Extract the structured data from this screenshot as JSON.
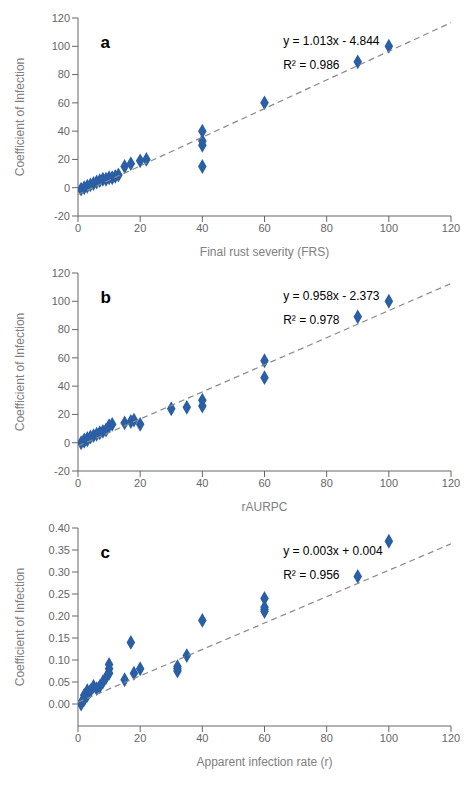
{
  "chart_data": [
    {
      "type": "scatter",
      "xlabel": "Final rust severity (FRS)",
      "ylabel": "Coefficient of Infection",
      "annotations": [
        "a",
        "y = 1.013x - 4.844",
        "R² = 0.986"
      ],
      "xlim": [
        0,
        120
      ],
      "ylim": [
        -20,
        120
      ],
      "xticks": [
        0,
        20,
        40,
        60,
        80,
        100,
        120
      ],
      "yticks": [
        -20,
        0,
        20,
        40,
        60,
        80,
        100,
        120
      ],
      "grid": false,
      "series": [
        {
          "type": "scatter",
          "color": "#2B5FA5",
          "marker": "diamond",
          "x": [
            1,
            2,
            3,
            4,
            5,
            6,
            7,
            8,
            9,
            10,
            11,
            12,
            13,
            15,
            17,
            20,
            22,
            40,
            40,
            40,
            40,
            60,
            90,
            100
          ],
          "values": [
            -1,
            0,
            1,
            2,
            3,
            4,
            5,
            6,
            6,
            7,
            7,
            8,
            9,
            15,
            17,
            19,
            20,
            15,
            30,
            33,
            40,
            60,
            89,
            100
          ]
        },
        {
          "type": "line",
          "color": "#888888",
          "line_style": "dashed",
          "x": [
            0,
            120
          ],
          "values": [
            -4.844,
            116.716
          ]
        }
      ]
    },
    {
      "type": "scatter",
      "xlabel": "rAURPC",
      "ylabel": "Coefficient of Infection",
      "annotations": [
        "b",
        "y = 0.958x - 2.373",
        "R² = 0.978"
      ],
      "xlim": [
        0,
        120
      ],
      "ylim": [
        -20,
        120
      ],
      "xticks": [
        0,
        20,
        40,
        60,
        80,
        100,
        120
      ],
      "yticks": [
        -20,
        0,
        20,
        40,
        60,
        80,
        100,
        120
      ],
      "grid": false,
      "series": [
        {
          "type": "scatter",
          "color": "#2B5FA5",
          "marker": "diamond",
          "x": [
            1,
            2,
            2,
            3,
            3,
            4,
            5,
            6,
            7,
            8,
            9,
            10,
            11,
            15,
            17,
            18,
            20,
            30,
            35,
            40,
            40,
            60,
            60,
            90,
            100
          ],
          "values": [
            0,
            1,
            2,
            2,
            3,
            4,
            5,
            6,
            7,
            8,
            9,
            12,
            13,
            14,
            15,
            16,
            13,
            24,
            25,
            26,
            30,
            46,
            58,
            89,
            100
          ]
        },
        {
          "type": "line",
          "color": "#888888",
          "line_style": "dashed",
          "x": [
            0,
            120
          ],
          "values": [
            -2.373,
            112.587
          ]
        }
      ]
    },
    {
      "type": "scatter",
      "xlabel": "Apparent infection rate (r)",
      "ylabel": "Coefficient of Infection",
      "annotations": [
        "c",
        "y = 0.003x + 0.004",
        "R² = 0.956"
      ],
      "xlim": [
        0,
        120
      ],
      "ylim": [
        -0.05,
        0.4
      ],
      "xticks": [
        0,
        20,
        40,
        60,
        80,
        100,
        120
      ],
      "yticks": [
        {
          "value": 0.0,
          "label": "0.00"
        },
        0.05,
        {
          "value": 0.1,
          "label": "0.10"
        },
        0.15,
        {
          "value": 0.2,
          "label": "0.20"
        },
        0.25,
        {
          "value": 0.3,
          "label": "0.30"
        },
        0.35,
        {
          "value": 0.4,
          "label": "0.40"
        }
      ],
      "grid": false,
      "series": [
        {
          "type": "scatter",
          "color": "#2B5FA5",
          "marker": "diamond",
          "x": [
            1,
            1,
            2,
            2,
            3,
            3,
            4,
            5,
            6,
            7,
            8,
            9,
            10,
            10,
            10,
            15,
            17,
            18,
            20,
            32,
            32,
            32,
            35,
            40,
            60,
            60,
            60,
            60,
            90,
            100
          ],
          "values": [
            0.0,
            0.002,
            0.01,
            0.02,
            0.02,
            0.03,
            0.03,
            0.04,
            0.035,
            0.04,
            0.05,
            0.06,
            0.07,
            0.08,
            0.09,
            0.055,
            0.14,
            0.07,
            0.08,
            0.075,
            0.08,
            0.085,
            0.11,
            0.19,
            0.21,
            0.215,
            0.22,
            0.24,
            0.29,
            0.37
          ]
        },
        {
          "type": "line",
          "color": "#888888",
          "line_style": "dashed",
          "x": [
            0,
            120
          ],
          "values": [
            0.004,
            0.364
          ]
        }
      ]
    }
  ]
}
